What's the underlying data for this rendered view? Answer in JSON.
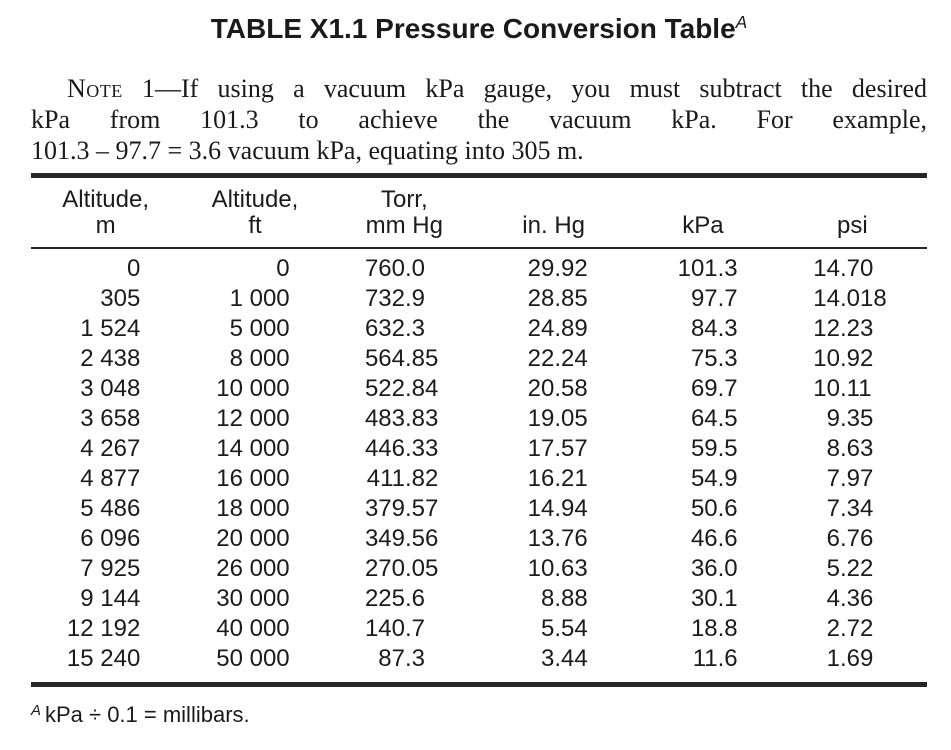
{
  "title": {
    "text": "TABLE X1.1 Pressure Conversion Table",
    "superscript": "A"
  },
  "note": {
    "label": "Note",
    "line1_rest": " 1—If using a vacuum kPa gauge, you must subtract the desired",
    "line2": "kPa from 101.3 to achieve the vacuum kPa. For example,",
    "line3": "101.3 – 97.7 = 3.6 vacuum kPa, equating into 305 m."
  },
  "table": {
    "columns": [
      {
        "id": "altitude-m",
        "label_line1": "Altitude,",
        "label_line2": "m"
      },
      {
        "id": "altitude-ft",
        "label_line1": "Altitude,",
        "label_line2": "ft"
      },
      {
        "id": "torr-mm-hg",
        "label_line1": "Torr,",
        "label_line2": "mm Hg"
      },
      {
        "id": "in-hg",
        "label_line1": "",
        "label_line2": "in. Hg"
      },
      {
        "id": "kpa",
        "label_line1": "",
        "label_line2": "kPa"
      },
      {
        "id": "psi",
        "label_line1": "",
        "label_line2": "psi"
      }
    ],
    "rows": [
      [
        "0",
        "0",
        "760.0",
        "29.92",
        "101.3",
        "14.70"
      ],
      [
        "305",
        "1 000",
        "732.9",
        "28.85",
        "97.7",
        "14.018"
      ],
      [
        "1 524",
        "5 000",
        "632.3",
        "24.89",
        "84.3",
        "12.23"
      ],
      [
        "2 438",
        "8 000",
        "564.85",
        "22.24",
        "75.3",
        "10.92"
      ],
      [
        "3 048",
        "10 000",
        "522.84",
        "20.58",
        "69.7",
        "10.11"
      ],
      [
        "3 658",
        "12 000",
        "483.83",
        "19.05",
        "64.5",
        "9.35"
      ],
      [
        "4 267",
        "14 000",
        "446.33",
        "17.57",
        "59.5",
        "8.63"
      ],
      [
        "4 877",
        "16 000",
        "411.82",
        "16.21",
        "54.9",
        "7.97"
      ],
      [
        "5 486",
        "18 000",
        "379.57",
        "14.94",
        "50.6",
        "7.34"
      ],
      [
        "6 096",
        "20 000",
        "349.56",
        "13.76",
        "46.6",
        "6.76"
      ],
      [
        "7 925",
        "26 000",
        "270.05",
        "10.63",
        "36.0",
        "5.22"
      ],
      [
        "9 144",
        "30 000",
        "225.6",
        "8.88",
        "30.1",
        "4.36"
      ],
      [
        "12 192",
        "40 000",
        "140.7",
        "5.54",
        "18.8",
        "2.72"
      ],
      [
        "15 240",
        "50 000",
        "87.3",
        "3.44",
        "11.6",
        "1.69"
      ]
    ]
  },
  "footnote": {
    "superscript": "A",
    "text": "kPa ÷ 0.1 = millibars."
  },
  "colors": {
    "text": "#1b1b1b",
    "rule": "#262626",
    "background": "#ffffff"
  }
}
